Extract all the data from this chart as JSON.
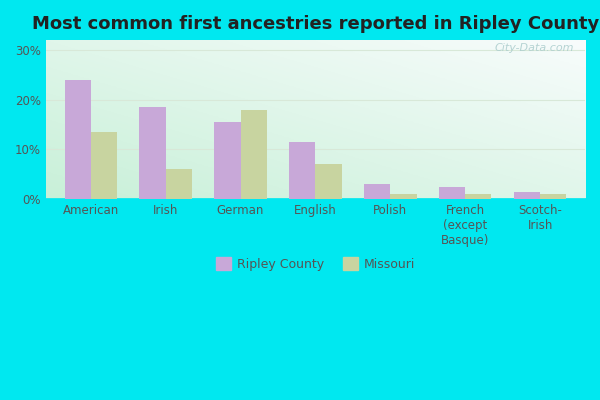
{
  "title": "Most common first ancestries reported in Ripley County",
  "categories": [
    "American",
    "Irish",
    "German",
    "English",
    "Polish",
    "French\n(except\nBasque)",
    "Scotch-\nIrish"
  ],
  "ripley_values": [
    24.0,
    18.5,
    15.5,
    11.5,
    3.0,
    2.5,
    1.5
  ],
  "missouri_values": [
    13.5,
    6.0,
    18.0,
    7.0,
    1.0,
    1.0,
    1.0
  ],
  "ripley_color": "#c8a8d8",
  "missouri_color": "#c8d4a0",
  "bar_width": 0.35,
  "ylim": [
    0,
    32
  ],
  "yticks": [
    0,
    10,
    20,
    30
  ],
  "ytick_labels": [
    "0%",
    "10%",
    "20%",
    "30%"
  ],
  "outer_bg_color": "#00e8f0",
  "plot_bg_gradient_bottom_left": "#c8f0d8",
  "plot_bg_gradient_top_right": "#f8fcfc",
  "grid_color": "#d8e8d8",
  "title_fontsize": 13,
  "tick_fontsize": 8.5,
  "legend_label_ripley": "Ripley County",
  "legend_label_missouri": "Missouri",
  "watermark": "City-Data.com"
}
